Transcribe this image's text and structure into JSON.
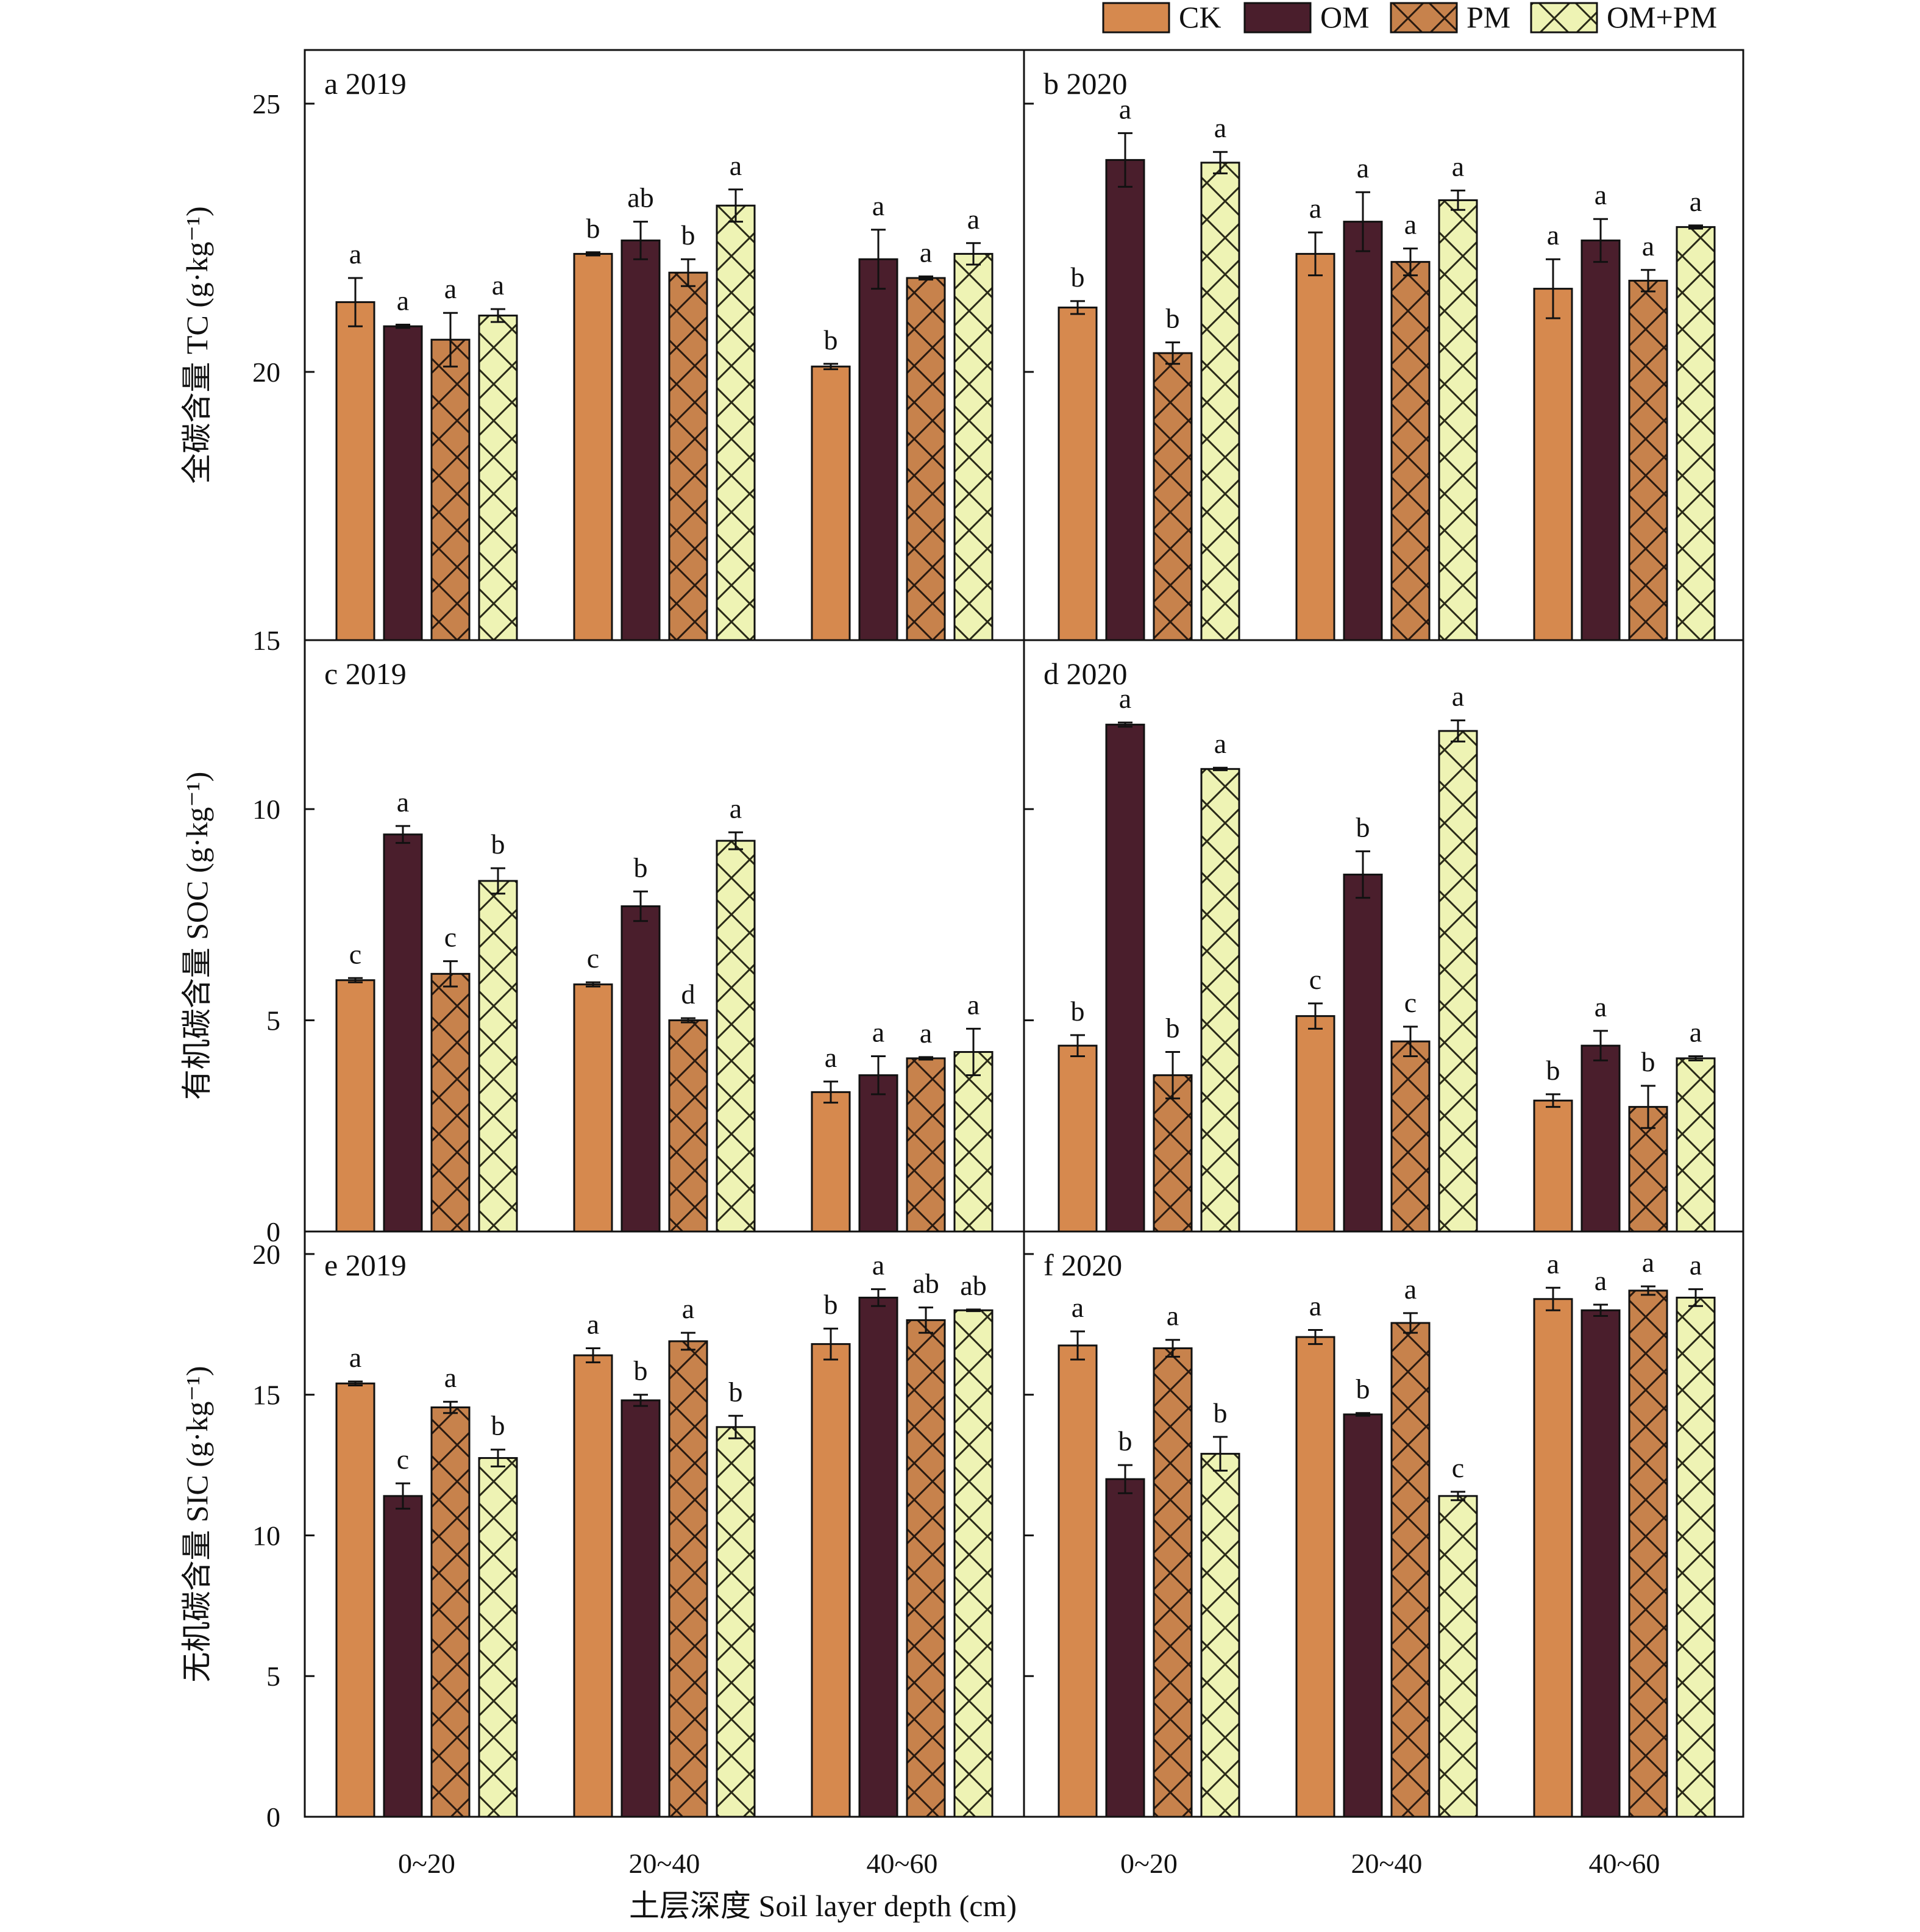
{
  "chart_data": {
    "type": "bar",
    "categories": [
      "0~20",
      "20~40",
      "40~60"
    ],
    "xlabel": "土层深度 Soil layer depth (cm)",
    "legend": {
      "placement": "top-right",
      "entries": [
        {
          "name": "CK",
          "color": "#D6894E",
          "pattern": "solid"
        },
        {
          "name": "OM",
          "color": "#4A1E2C",
          "pattern": "solid"
        },
        {
          "name": "PM",
          "color": "#C7824C",
          "pattern": "crosshatch"
        },
        {
          "name": "OM+PM",
          "color": "#EEF3B4",
          "pattern": "crosshatch"
        }
      ]
    },
    "rows": [
      {
        "ylabel": "全碳含量 TC (g·kg⁻¹)",
        "ylim": [
          15,
          26
        ],
        "ticks": [
          15,
          20,
          25
        ]
      },
      {
        "ylabel": "有机碳含量 SOC (g·kg⁻¹)",
        "ylim": [
          0,
          14
        ],
        "ticks": [
          0,
          5,
          10
        ]
      },
      {
        "ylabel": "无机碳含量 SIC (g·kg⁻¹)",
        "ylim": [
          0,
          20.8
        ],
        "ticks": [
          0,
          5,
          10,
          15,
          20
        ]
      }
    ],
    "panels": [
      {
        "id": "a",
        "year": "2019",
        "row": 0,
        "col": 0,
        "series": [
          {
            "name": "CK",
            "values": [
              21.3,
              22.2,
              20.1
            ],
            "errors": [
              0.45,
              0.03,
              0.05
            ],
            "letters": [
              "a",
              "b",
              "b"
            ]
          },
          {
            "name": "OM",
            "values": [
              20.85,
              22.45,
              22.1
            ],
            "errors": [
              0.03,
              0.35,
              0.55
            ],
            "letters": [
              "a",
              "ab",
              "a"
            ]
          },
          {
            "name": "PM",
            "values": [
              20.6,
              21.85,
              21.75
            ],
            "errors": [
              0.5,
              0.25,
              0.03
            ],
            "letters": [
              "a",
              "b",
              "a"
            ]
          },
          {
            "name": "OM+PM",
            "values": [
              21.05,
              23.1,
              22.2
            ],
            "errors": [
              0.12,
              0.3,
              0.2
            ],
            "letters": [
              "a",
              "a",
              "a"
            ]
          }
        ]
      },
      {
        "id": "b",
        "year": "2020",
        "row": 0,
        "col": 1,
        "series": [
          {
            "name": "CK",
            "values": [
              21.2,
              22.2,
              21.55
            ],
            "errors": [
              0.12,
              0.4,
              0.55
            ],
            "letters": [
              "b",
              "a",
              "a"
            ]
          },
          {
            "name": "OM",
            "values": [
              23.95,
              22.8,
              22.45
            ],
            "errors": [
              0.5,
              0.55,
              0.4
            ],
            "letters": [
              "a",
              "a",
              "a"
            ]
          },
          {
            "name": "PM",
            "values": [
              20.35,
              22.05,
              21.7
            ],
            "errors": [
              0.2,
              0.25,
              0.2
            ],
            "letters": [
              "b",
              "a",
              "a"
            ]
          },
          {
            "name": "OM+PM",
            "values": [
              23.9,
              23.2,
              22.7
            ],
            "errors": [
              0.2,
              0.18,
              0.03
            ],
            "letters": [
              "a",
              "a",
              "a"
            ]
          }
        ]
      },
      {
        "id": "c",
        "year": "2019",
        "row": 1,
        "col": 0,
        "series": [
          {
            "name": "CK",
            "values": [
              5.95,
              5.85,
              3.3
            ],
            "errors": [
              0.05,
              0.05,
              0.25
            ],
            "letters": [
              "c",
              "c",
              "a"
            ]
          },
          {
            "name": "OM",
            "values": [
              9.4,
              7.7,
              3.7
            ],
            "errors": [
              0.2,
              0.35,
              0.45
            ],
            "letters": [
              "a",
              "b",
              "a"
            ]
          },
          {
            "name": "PM",
            "values": [
              6.1,
              5.0,
              4.1
            ],
            "errors": [
              0.3,
              0.05,
              0.03
            ],
            "letters": [
              "c",
              "d",
              "a"
            ]
          },
          {
            "name": "OM+PM",
            "values": [
              8.3,
              9.25,
              4.25
            ],
            "errors": [
              0.3,
              0.2,
              0.55
            ],
            "letters": [
              "b",
              "a",
              "a"
            ]
          }
        ]
      },
      {
        "id": "d",
        "year": "2020",
        "row": 1,
        "col": 1,
        "series": [
          {
            "name": "CK",
            "values": [
              4.4,
              5.1,
              3.1
            ],
            "errors": [
              0.25,
              0.3,
              0.15
            ],
            "letters": [
              "b",
              "c",
              "b"
            ]
          },
          {
            "name": "OM",
            "values": [
              12.0,
              8.45,
              4.4
            ],
            "errors": [
              0.05,
              0.55,
              0.35
            ],
            "letters": [
              "a",
              "b",
              "a"
            ]
          },
          {
            "name": "PM",
            "values": [
              3.7,
              4.5,
              2.95
            ],
            "errors": [
              0.55,
              0.35,
              0.5
            ],
            "letters": [
              "b",
              "c",
              "b"
            ]
          },
          {
            "name": "OM+PM",
            "values": [
              10.95,
              11.85,
              4.1
            ],
            "errors": [
              0.03,
              0.25,
              0.05
            ],
            "letters": [
              "a",
              "a",
              "a"
            ]
          }
        ]
      },
      {
        "id": "e",
        "year": "2019",
        "row": 2,
        "col": 0,
        "series": [
          {
            "name": "CK",
            "values": [
              15.4,
              16.4,
              16.8
            ],
            "errors": [
              0.07,
              0.25,
              0.55
            ],
            "letters": [
              "a",
              "a",
              "b"
            ]
          },
          {
            "name": "OM",
            "values": [
              11.4,
              14.8,
              18.45
            ],
            "errors": [
              0.45,
              0.2,
              0.3
            ],
            "letters": [
              "c",
              "b",
              "a"
            ]
          },
          {
            "name": "PM",
            "values": [
              14.55,
              16.9,
              17.65
            ],
            "errors": [
              0.2,
              0.3,
              0.45
            ],
            "letters": [
              "a",
              "a",
              "ab"
            ]
          },
          {
            "name": "OM+PM",
            "values": [
              12.75,
              13.85,
              18.0
            ],
            "errors": [
              0.3,
              0.4,
              0.03
            ],
            "letters": [
              "b",
              "b",
              "ab"
            ]
          }
        ]
      },
      {
        "id": "f",
        "year": "2020",
        "row": 2,
        "col": 1,
        "series": [
          {
            "name": "CK",
            "values": [
              16.75,
              17.05,
              18.4
            ],
            "errors": [
              0.5,
              0.25,
              0.4
            ],
            "letters": [
              "a",
              "a",
              "a"
            ]
          },
          {
            "name": "OM",
            "values": [
              12.0,
              14.3,
              18.0
            ],
            "errors": [
              0.5,
              0.05,
              0.2
            ],
            "letters": [
              "b",
              "b",
              "a"
            ]
          },
          {
            "name": "PM",
            "values": [
              16.65,
              17.55,
              18.7
            ],
            "errors": [
              0.3,
              0.35,
              0.15
            ],
            "letters": [
              "a",
              "a",
              "a"
            ]
          },
          {
            "name": "OM+PM",
            "values": [
              12.9,
              11.4,
              18.45
            ],
            "errors": [
              0.6,
              0.15,
              0.3
            ],
            "letters": [
              "b",
              "c",
              "a"
            ]
          }
        ]
      }
    ]
  }
}
